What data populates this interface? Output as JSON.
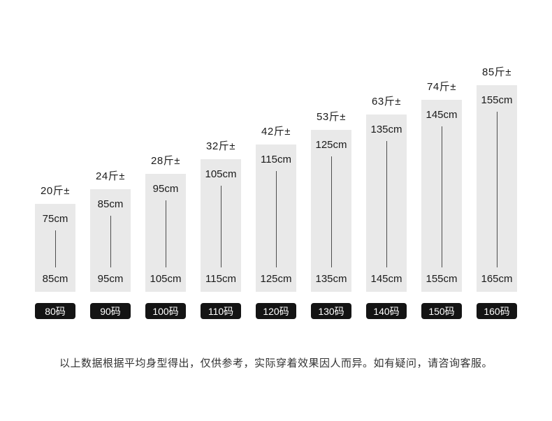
{
  "chart_data": {
    "type": "bar",
    "title": "",
    "categories": [
      "80码",
      "90码",
      "100码",
      "110码",
      "120码",
      "130码",
      "140码",
      "150码",
      "160码"
    ],
    "series": [
      {
        "name": "weight",
        "values": [
          "20斤±",
          "24斤±",
          "28斤±",
          "32斤±",
          "42斤±",
          "53斤±",
          "63斤±",
          "74斤±",
          "85斤±"
        ]
      },
      {
        "name": "height_lower_cm",
        "values": [
          75,
          85,
          95,
          105,
          115,
          125,
          135,
          145,
          155
        ]
      },
      {
        "name": "height_upper_cm",
        "values": [
          85,
          95,
          105,
          115,
          125,
          135,
          145,
          155,
          165
        ]
      }
    ],
    "labels": {
      "height_lower": [
        "75cm",
        "85cm",
        "95cm",
        "105cm",
        "115cm",
        "125cm",
        "135cm",
        "145cm",
        "155cm"
      ],
      "height_upper": [
        "85cm",
        "95cm",
        "105cm",
        "115cm",
        "125cm",
        "135cm",
        "145cm",
        "155cm",
        "165cm"
      ]
    },
    "legend": "none",
    "grid": false
  },
  "footer": {
    "note": "以上数据根据平均身型得出，仅供参考，实际穿着效果因人而异。如有疑问，请咨询客服。"
  },
  "colors": {
    "bar_fill": "#e9e9e9",
    "badge_bg": "#141414",
    "badge_text": "#ffffff",
    "text": "#1a1a1a",
    "range_line": "#4d4d4d"
  }
}
